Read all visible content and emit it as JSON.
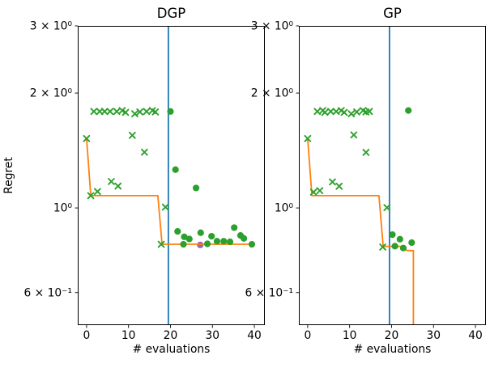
{
  "figure": {
    "ylabel": "Regret",
    "background": "#ffffff"
  },
  "colors": {
    "orange": "#ff7f0e",
    "green": "#2ca02c",
    "blue": "#1f77b4",
    "purple": "#9467bd",
    "axis": "#000000"
  },
  "chart_data": [
    {
      "type": "scatter",
      "title": "DGP",
      "xlabel": "# evaluations",
      "ylabel": "Regret",
      "yscale": "log",
      "xlim": [
        -2.1,
        42.5
      ],
      "ylim": [
        0.493,
        3.0
      ],
      "grid": false,
      "legend": "none",
      "xticks": [
        {
          "value": 0,
          "label": "0"
        },
        {
          "value": 10,
          "label": "10"
        },
        {
          "value": 20,
          "label": "20"
        },
        {
          "value": 30,
          "label": "30"
        },
        {
          "value": 40,
          "label": "40"
        }
      ],
      "yticks": [
        {
          "value": 3,
          "label": "3 × 10⁰"
        },
        {
          "value": 2,
          "label": "2 × 10⁰"
        },
        {
          "value": 1,
          "label": "10⁰"
        },
        {
          "value": 0.6,
          "label": "6 × 10⁻¹"
        }
      ],
      "vline_x": 19.5,
      "regret_line": [
        [
          0,
          1.52
        ],
        [
          1,
          1.077
        ],
        [
          17,
          1.077
        ],
        [
          18,
          0.803
        ],
        [
          40,
          0.803
        ]
      ],
      "x_markers": [
        [
          0,
          1.52
        ],
        [
          1,
          1.077
        ],
        [
          2.6,
          1.104
        ],
        [
          5.9,
          1.173
        ],
        [
          7.5,
          1.141
        ],
        [
          1.74,
          1.79
        ],
        [
          3.15,
          1.79
        ],
        [
          4.3,
          1.79
        ],
        [
          5.6,
          1.79
        ],
        [
          7.2,
          1.79
        ],
        [
          8.5,
          1.8
        ],
        [
          9.3,
          1.78
        ],
        [
          11.5,
          1.765
        ],
        [
          12.7,
          1.785
        ],
        [
          14.3,
          1.79
        ],
        [
          15.7,
          1.8
        ],
        [
          16.4,
          1.785
        ],
        [
          10.9,
          1.55
        ],
        [
          13.8,
          1.4
        ],
        [
          18.8,
          1.005
        ],
        [
          17.8,
          0.803
        ]
      ],
      "circle_markers": [
        [
          20,
          1.79
        ],
        [
          21.2,
          1.26
        ],
        [
          26.1,
          1.128
        ],
        [
          21.7,
          0.868
        ],
        [
          23.3,
          0.84
        ],
        [
          23.1,
          0.803
        ],
        [
          24.5,
          0.829
        ],
        [
          27.2,
          0.861
        ],
        [
          28.8,
          0.805
        ],
        [
          29.8,
          0.843
        ],
        [
          31.1,
          0.818
        ],
        [
          32.7,
          0.818
        ],
        [
          34.2,
          0.815
        ],
        [
          35.2,
          0.888
        ],
        [
          36.7,
          0.847
        ],
        [
          37.5,
          0.832
        ],
        [
          39.4,
          0.803
        ]
      ],
      "purple_markers": [
        [
          27.1,
          0.8
        ]
      ]
    },
    {
      "type": "scatter",
      "title": "GP",
      "xlabel": "# evaluations",
      "ylabel": "",
      "yscale": "log",
      "xlim": [
        -2.1,
        42.5
      ],
      "ylim": [
        0.493,
        3.0
      ],
      "grid": false,
      "legend": "none",
      "xticks": [
        {
          "value": 0,
          "label": "0"
        },
        {
          "value": 10,
          "label": "10"
        },
        {
          "value": 20,
          "label": "20"
        },
        {
          "value": 30,
          "label": "30"
        },
        {
          "value": 40,
          "label": "40"
        }
      ],
      "yticks": [
        {
          "value": 3,
          "label": "3 × 10⁰"
        },
        {
          "value": 2,
          "label": "2 × 10⁰"
        },
        {
          "value": 1,
          "label": "10⁰"
        },
        {
          "value": 0.6,
          "label": "6 × 10⁻¹"
        }
      ],
      "vline_x": 19.5,
      "regret_line": [
        [
          0,
          1.52
        ],
        [
          1,
          1.077
        ],
        [
          17,
          1.077
        ],
        [
          18,
          0.793
        ],
        [
          22.3,
          0.793
        ],
        [
          23.7,
          0.773
        ],
        [
          25.2,
          0.773
        ],
        [
          25.2,
          0.45
        ]
      ],
      "x_markers": [
        [
          0,
          1.52
        ],
        [
          1.4,
          1.1
        ],
        [
          2.9,
          1.11
        ],
        [
          5.9,
          1.17
        ],
        [
          7.5,
          1.14
        ],
        [
          2.3,
          1.79
        ],
        [
          3.6,
          1.8
        ],
        [
          4.1,
          1.78
        ],
        [
          5.5,
          1.79
        ],
        [
          6.8,
          1.79
        ],
        [
          8.0,
          1.8
        ],
        [
          8.7,
          1.78
        ],
        [
          10.4,
          1.765
        ],
        [
          11.7,
          1.785
        ],
        [
          13.2,
          1.8
        ],
        [
          13.9,
          1.785
        ],
        [
          14.7,
          1.79
        ],
        [
          11.0,
          1.554
        ],
        [
          13.9,
          1.398
        ],
        [
          18.9,
          1.002
        ],
        [
          17.9,
          0.79
        ]
      ],
      "circle_markers": [
        [
          24,
          1.8
        ],
        [
          20.2,
          0.851
        ],
        [
          20.8,
          0.794
        ],
        [
          22.0,
          0.828
        ],
        [
          22.8,
          0.785
        ],
        [
          24.8,
          0.811
        ]
      ],
      "purple_markers": []
    }
  ]
}
